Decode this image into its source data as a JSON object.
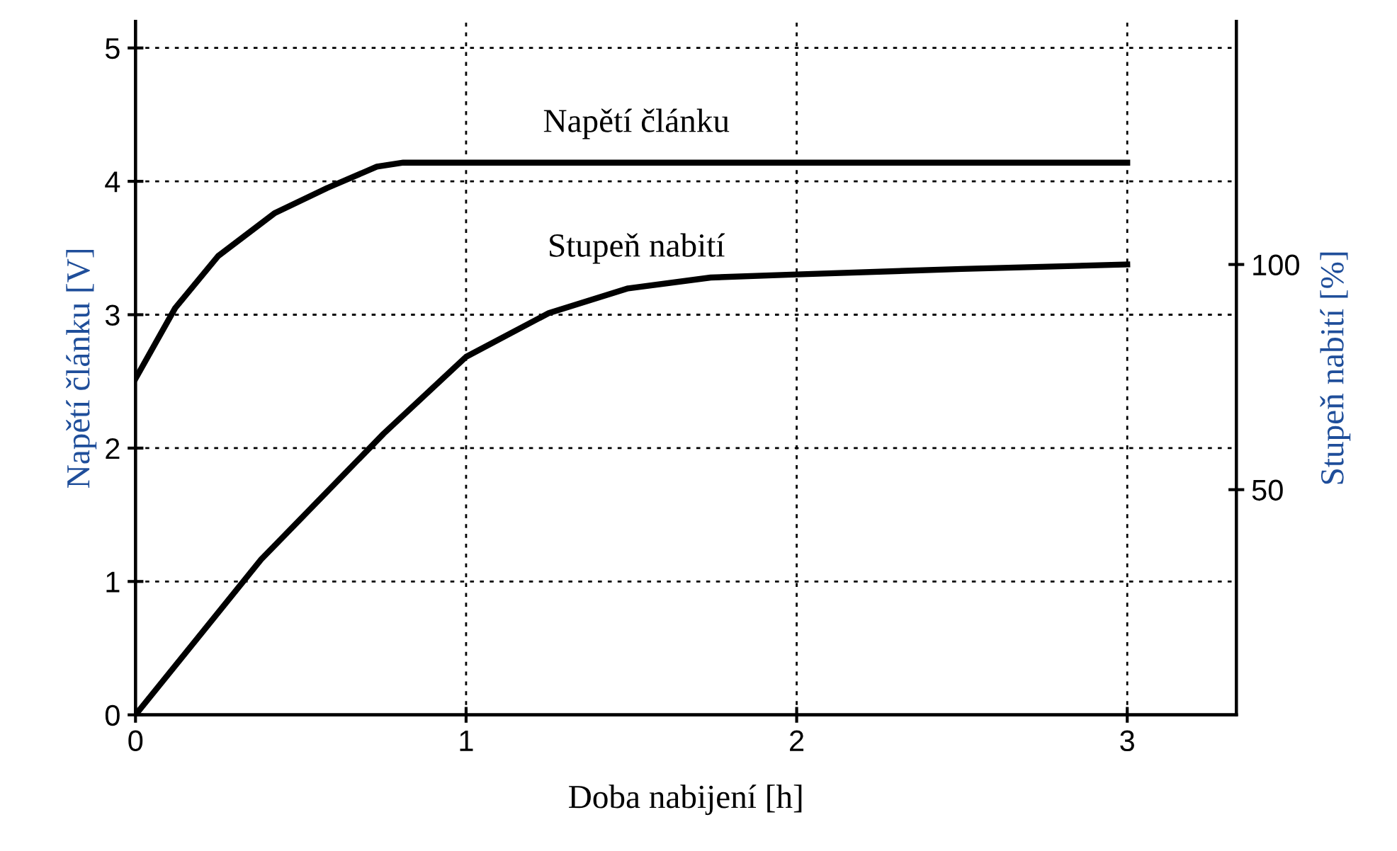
{
  "chart_data": {
    "type": "line",
    "xlabel": "Doba nabijení [h]",
    "ylabel": "Napětí článku [V]",
    "y2label": "Stupeň nabití [%]",
    "xlim": [
      0,
      3.33
    ],
    "xticks": [
      0,
      1,
      2,
      3
    ],
    "ylim": [
      0,
      5.2
    ],
    "yticks": [
      0,
      1,
      2,
      3,
      4,
      5
    ],
    "y2lim": [
      0,
      154
    ],
    "y2ticks": [
      50,
      100
    ],
    "grid": true,
    "line_style": "solid",
    "marker": "none",
    "series": [
      {
        "name": "Napětí článku",
        "color": "#000000",
        "x": [
          0,
          0.12,
          0.25,
          0.42,
          0.58,
          0.73,
          0.81,
          1.5,
          2,
          2.5,
          3
        ],
        "values": [
          2.52,
          3.05,
          3.44,
          3.76,
          3.95,
          4.11,
          4.14,
          4.14,
          4.14,
          4.14,
          4.14
        ]
      },
      {
        "name": "Stupeň nabití",
        "color": "#000000",
        "axis": "y2",
        "x": [
          0,
          0.38,
          0.75,
          1.0,
          1.25,
          1.49,
          1.74,
          2.0,
          2.5,
          3
        ],
        "values": [
          0,
          34.5,
          62.4,
          79.5,
          89.2,
          94.7,
          97.1,
          97.8,
          99,
          100
        ]
      }
    ]
  }
}
